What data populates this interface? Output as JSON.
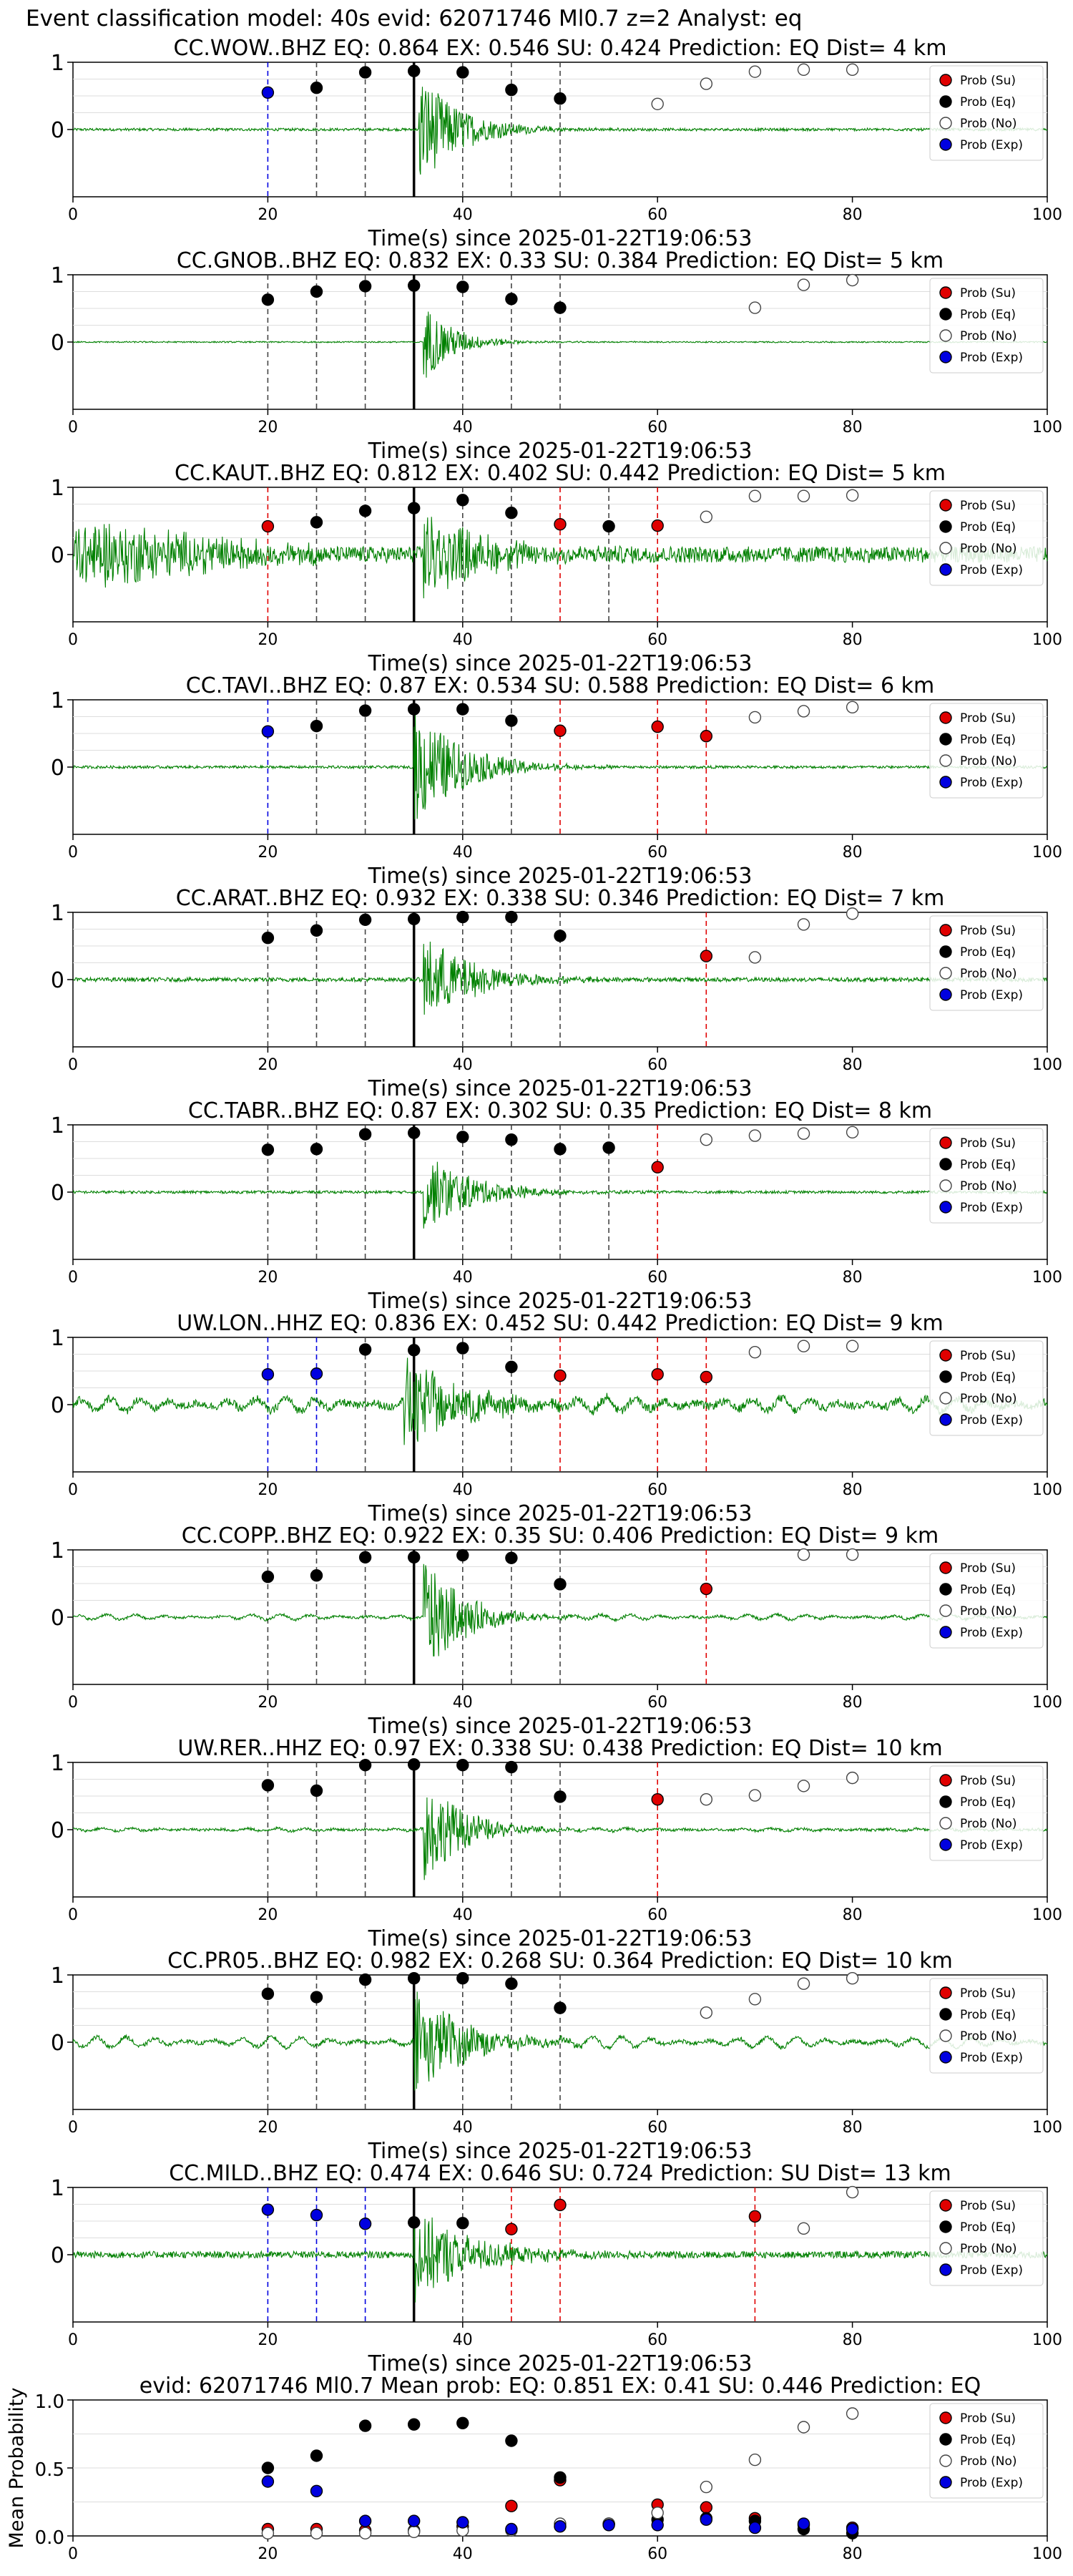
{
  "figure": {
    "suptitle": "Event classification model: 40s evid: 62071746 Ml0.7 z=2 Analyst: eq"
  },
  "legend_labels": [
    "Prob (Su)",
    "Prob (Eq)",
    "Prob (No)",
    "Prob (Exp)"
  ],
  "colors": {
    "su": "#e00000",
    "eq": "#000000",
    "no": "#ffffff",
    "exp": "#0000e0",
    "waveform": "#008000"
  },
  "chart_data": [
    {
      "type": "scatter",
      "kind": "station",
      "title": "CC.WOW..BHZ   EQ: 0.864  EX: 0.546  SU: 0.424   Prediction: EQ    Dist= 4 km",
      "xlabel": "Time(s) since 2025-01-22T19:06:53",
      "xlim": [
        0,
        100
      ],
      "ylim": [
        -1,
        1
      ],
      "xticks": [
        0,
        20,
        40,
        60,
        80,
        100
      ],
      "yticks": [
        0,
        1
      ],
      "waveform": {
        "noise": 0.02,
        "burst_start": 35.5,
        "burst_amp": 0.9,
        "decay": 4
      },
      "pick_time": 35,
      "points": [
        [
          20,
          0.55,
          "exp"
        ],
        [
          25,
          0.62,
          "eq"
        ],
        [
          30,
          0.85,
          "eq"
        ],
        [
          35,
          0.87,
          "eq"
        ],
        [
          40,
          0.85,
          "eq"
        ],
        [
          45,
          0.59,
          "eq"
        ],
        [
          50,
          0.46,
          "eq"
        ],
        [
          60,
          0.38,
          "no"
        ],
        [
          65,
          0.68,
          "no"
        ],
        [
          70,
          0.86,
          "no"
        ],
        [
          75,
          0.89,
          "no"
        ],
        [
          80,
          0.89,
          "no"
        ]
      ]
    },
    {
      "type": "scatter",
      "kind": "station",
      "title": "CC.GNOB..BHZ   EQ: 0.832  EX: 0.33  SU: 0.384   Prediction: EQ    Dist= 5 km",
      "xlabel": "Time(s) since 2025-01-22T19:06:53",
      "xlim": [
        0,
        100
      ],
      "ylim": [
        -1,
        1
      ],
      "xticks": [
        0,
        20,
        40,
        60,
        80,
        100
      ],
      "yticks": [
        0,
        1
      ],
      "waveform": {
        "noise": 0.01,
        "burst_start": 36,
        "burst_amp": 0.6,
        "decay": 3
      },
      "pick_time": 35,
      "points": [
        [
          20,
          0.63,
          "eq"
        ],
        [
          25,
          0.75,
          "eq"
        ],
        [
          30,
          0.83,
          "eq"
        ],
        [
          35,
          0.84,
          "eq"
        ],
        [
          40,
          0.82,
          "eq"
        ],
        [
          45,
          0.64,
          "eq"
        ],
        [
          50,
          0.51,
          "eq"
        ],
        [
          70,
          0.51,
          "no"
        ],
        [
          75,
          0.85,
          "no"
        ],
        [
          80,
          0.92,
          "no"
        ]
      ]
    },
    {
      "type": "scatter",
      "kind": "station",
      "title": "CC.KAUT..BHZ   EQ: 0.812  EX: 0.402  SU: 0.442   Prediction: EQ    Dist= 5 km",
      "xlabel": "Time(s) since 2025-01-22T19:06:53",
      "xlim": [
        0,
        100
      ],
      "ylim": [
        -1,
        1
      ],
      "xticks": [
        0,
        20,
        40,
        60,
        80,
        100
      ],
      "yticks": [
        0,
        1
      ],
      "waveform": {
        "noise": 0.12,
        "early_amp": 0.5,
        "burst_start": 36,
        "burst_amp": 0.7,
        "decay": 6
      },
      "pick_time": 35,
      "points": [
        [
          20,
          0.42,
          "su"
        ],
        [
          25,
          0.48,
          "eq"
        ],
        [
          30,
          0.65,
          "eq"
        ],
        [
          35,
          0.69,
          "eq"
        ],
        [
          40,
          0.81,
          "eq"
        ],
        [
          45,
          0.62,
          "eq"
        ],
        [
          50,
          0.45,
          "su"
        ],
        [
          55,
          0.42,
          "eq"
        ],
        [
          60,
          0.43,
          "su"
        ],
        [
          65,
          0.56,
          "no"
        ],
        [
          70,
          0.87,
          "no"
        ],
        [
          75,
          0.87,
          "no"
        ],
        [
          80,
          0.88,
          "no"
        ]
      ]
    },
    {
      "type": "scatter",
      "kind": "station",
      "title": "CC.TAVI..BHZ   EQ: 0.87  EX: 0.534  SU: 0.588   Prediction: EQ    Dist= 6 km",
      "xlabel": "Time(s) since 2025-01-22T19:06:53",
      "xlim": [
        0,
        100
      ],
      "ylim": [
        -1,
        1
      ],
      "xticks": [
        0,
        20,
        40,
        60,
        80,
        100
      ],
      "yticks": [
        0,
        1
      ],
      "waveform": {
        "noise": 0.02,
        "burst_start": 35,
        "burst_amp": 0.9,
        "decay": 5
      },
      "pick_time": 35,
      "points": [
        [
          20,
          0.53,
          "exp"
        ],
        [
          25,
          0.61,
          "eq"
        ],
        [
          30,
          0.84,
          "eq"
        ],
        [
          35,
          0.86,
          "eq"
        ],
        [
          40,
          0.86,
          "eq"
        ],
        [
          45,
          0.69,
          "eq"
        ],
        [
          50,
          0.54,
          "su"
        ],
        [
          60,
          0.6,
          "su"
        ],
        [
          65,
          0.46,
          "su"
        ],
        [
          70,
          0.74,
          "no"
        ],
        [
          75,
          0.83,
          "no"
        ],
        [
          80,
          0.89,
          "no"
        ]
      ]
    },
    {
      "type": "scatter",
      "kind": "station",
      "title": "CC.ARAT..BHZ   EQ: 0.932  EX: 0.338  SU: 0.346   Prediction: EQ    Dist= 7 km",
      "xlabel": "Time(s) since 2025-01-22T19:06:53",
      "xlim": [
        0,
        100
      ],
      "ylim": [
        -1,
        1
      ],
      "xticks": [
        0,
        20,
        40,
        60,
        80,
        100
      ],
      "yticks": [
        0,
        1
      ],
      "waveform": {
        "noise": 0.03,
        "burst_start": 36,
        "burst_amp": 0.7,
        "decay": 5
      },
      "pick_time": 35,
      "points": [
        [
          20,
          0.62,
          "eq"
        ],
        [
          25,
          0.73,
          "eq"
        ],
        [
          30,
          0.89,
          "eq"
        ],
        [
          35,
          0.9,
          "eq"
        ],
        [
          40,
          0.93,
          "eq"
        ],
        [
          45,
          0.93,
          "eq"
        ],
        [
          50,
          0.65,
          "eq"
        ],
        [
          65,
          0.35,
          "su"
        ],
        [
          70,
          0.33,
          "no"
        ],
        [
          75,
          0.82,
          "no"
        ],
        [
          80,
          0.98,
          "no"
        ]
      ]
    },
    {
      "type": "scatter",
      "kind": "station",
      "title": "CC.TABR..BHZ   EQ: 0.87  EX: 0.302  SU: 0.35   Prediction: EQ    Dist= 8 km",
      "xlabel": "Time(s) since 2025-01-22T19:06:53",
      "xlim": [
        0,
        100
      ],
      "ylim": [
        -1,
        1
      ],
      "xticks": [
        0,
        20,
        40,
        60,
        80,
        100
      ],
      "yticks": [
        0,
        1
      ],
      "waveform": {
        "noise": 0.02,
        "burst_start": 36,
        "burst_amp": 0.6,
        "decay": 5
      },
      "pick_time": 35,
      "points": [
        [
          20,
          0.63,
          "eq"
        ],
        [
          25,
          0.64,
          "eq"
        ],
        [
          30,
          0.86,
          "eq"
        ],
        [
          35,
          0.88,
          "eq"
        ],
        [
          40,
          0.82,
          "eq"
        ],
        [
          45,
          0.78,
          "eq"
        ],
        [
          50,
          0.64,
          "eq"
        ],
        [
          55,
          0.66,
          "eq"
        ],
        [
          60,
          0.37,
          "su"
        ],
        [
          65,
          0.78,
          "no"
        ],
        [
          70,
          0.84,
          "no"
        ],
        [
          75,
          0.87,
          "no"
        ],
        [
          80,
          0.89,
          "no"
        ]
      ]
    },
    {
      "type": "scatter",
      "kind": "station",
      "title": "UW.LON..HHZ   EQ: 0.836  EX: 0.452  SU: 0.442   Prediction: EQ    Dist= 9 km",
      "xlabel": "Time(s) since 2025-01-22T19:06:53",
      "xlim": [
        0,
        100
      ],
      "ylim": [
        -1,
        1
      ],
      "xticks": [
        0,
        20,
        40,
        60,
        80,
        100
      ],
      "yticks": [
        0,
        1
      ],
      "waveform": {
        "noise": 0.06,
        "swell": 0.1,
        "burst_start": 34,
        "burst_amp": 0.7,
        "decay": 6
      },
      "pick_time": 35,
      "points": [
        [
          20,
          0.45,
          "exp"
        ],
        [
          25,
          0.46,
          "exp"
        ],
        [
          30,
          0.82,
          "eq"
        ],
        [
          35,
          0.81,
          "eq"
        ],
        [
          40,
          0.84,
          "eq"
        ],
        [
          45,
          0.56,
          "eq"
        ],
        [
          50,
          0.43,
          "su"
        ],
        [
          60,
          0.45,
          "su"
        ],
        [
          65,
          0.41,
          "su"
        ],
        [
          70,
          0.78,
          "no"
        ],
        [
          75,
          0.87,
          "no"
        ],
        [
          80,
          0.87,
          "no"
        ]
      ]
    },
    {
      "type": "scatter",
      "kind": "station",
      "title": "CC.COPP..BHZ   EQ: 0.922  EX: 0.35  SU: 0.406   Prediction: EQ    Dist= 9 km",
      "xlabel": "Time(s) since 2025-01-22T19:06:53",
      "xlim": [
        0,
        100
      ],
      "ylim": [
        -1,
        1
      ],
      "xticks": [
        0,
        20,
        40,
        60,
        80,
        100
      ],
      "yticks": [
        0,
        1
      ],
      "waveform": {
        "noise": 0.02,
        "swell": 0.04,
        "burst_start": 36,
        "burst_amp": 0.9,
        "decay": 4
      },
      "pick_time": 35,
      "points": [
        [
          20,
          0.6,
          "eq"
        ],
        [
          25,
          0.62,
          "eq"
        ],
        [
          30,
          0.89,
          "eq"
        ],
        [
          35,
          0.89,
          "eq"
        ],
        [
          40,
          0.92,
          "eq"
        ],
        [
          45,
          0.88,
          "eq"
        ],
        [
          50,
          0.49,
          "eq"
        ],
        [
          65,
          0.42,
          "su"
        ],
        [
          75,
          0.93,
          "no"
        ],
        [
          80,
          0.93,
          "no"
        ]
      ]
    },
    {
      "type": "scatter",
      "kind": "station",
      "title": "UW.RER..HHZ   EQ: 0.97  EX: 0.338  SU: 0.438   Prediction: EQ    Dist= 10 km",
      "xlabel": "Time(s) since 2025-01-22T19:06:53",
      "xlim": [
        0,
        100
      ],
      "ylim": [
        -1,
        1
      ],
      "xticks": [
        0,
        20,
        40,
        60,
        80,
        100
      ],
      "yticks": [
        0,
        1
      ],
      "waveform": {
        "noise": 0.02,
        "swell": 0.02,
        "burst_start": 36,
        "burst_amp": 0.8,
        "decay": 4
      },
      "pick_time": 35,
      "points": [
        [
          20,
          0.66,
          "eq"
        ],
        [
          25,
          0.58,
          "eq"
        ],
        [
          30,
          0.96,
          "eq"
        ],
        [
          35,
          0.97,
          "eq"
        ],
        [
          40,
          0.96,
          "eq"
        ],
        [
          45,
          0.93,
          "eq"
        ],
        [
          50,
          0.49,
          "eq"
        ],
        [
          60,
          0.45,
          "su"
        ],
        [
          65,
          0.45,
          "no"
        ],
        [
          70,
          0.51,
          "no"
        ],
        [
          75,
          0.65,
          "no"
        ],
        [
          80,
          0.77,
          "no"
        ]
      ]
    },
    {
      "type": "scatter",
      "kind": "station",
      "title": "CC.PR05..BHZ   EQ: 0.982  EX: 0.268  SU: 0.364   Prediction: EQ    Dist= 10 km",
      "xlabel": "Time(s) since 2025-01-22T19:06:53",
      "xlim": [
        0,
        100
      ],
      "ylim": [
        -1,
        1
      ],
      "xticks": [
        0,
        20,
        40,
        60,
        80,
        100
      ],
      "yticks": [
        0,
        1
      ],
      "waveform": {
        "noise": 0.03,
        "swell": 0.08,
        "burst_start": 35,
        "burst_amp": 0.8,
        "decay": 5
      },
      "pick_time": 35,
      "points": [
        [
          20,
          0.72,
          "eq"
        ],
        [
          25,
          0.67,
          "eq"
        ],
        [
          30,
          0.93,
          "eq"
        ],
        [
          35,
          0.95,
          "eq"
        ],
        [
          40,
          0.95,
          "eq"
        ],
        [
          45,
          0.87,
          "eq"
        ],
        [
          50,
          0.51,
          "eq"
        ],
        [
          65,
          0.44,
          "no"
        ],
        [
          70,
          0.64,
          "no"
        ],
        [
          75,
          0.87,
          "no"
        ],
        [
          80,
          0.95,
          "no"
        ]
      ]
    },
    {
      "type": "scatter",
      "kind": "station",
      "title": "CC.MILD..BHZ   EQ: 0.474  EX: 0.646  SU: 0.724   Prediction: SU    Dist= 13 km",
      "xlabel": "Time(s) since 2025-01-22T19:06:53",
      "xlim": [
        0,
        100
      ],
      "ylim": [
        -1,
        1
      ],
      "xticks": [
        0,
        20,
        40,
        60,
        80,
        100
      ],
      "yticks": [
        0,
        1
      ],
      "waveform": {
        "noise": 0.05,
        "burst_start": 35,
        "burst_amp": 0.7,
        "decay": 6
      },
      "pick_time": 35,
      "points": [
        [
          20,
          0.67,
          "exp"
        ],
        [
          25,
          0.59,
          "exp"
        ],
        [
          30,
          0.46,
          "exp"
        ],
        [
          35,
          0.48,
          "eq"
        ],
        [
          40,
          0.47,
          "eq"
        ],
        [
          45,
          0.38,
          "su"
        ],
        [
          50,
          0.74,
          "su"
        ],
        [
          70,
          0.57,
          "su"
        ],
        [
          75,
          0.39,
          "no"
        ],
        [
          80,
          0.93,
          "no"
        ]
      ]
    },
    {
      "type": "scatter",
      "kind": "mean",
      "title": "evid: 62071746  Ml0.7   Mean prob:   EQ: 0.851  EX: 0.41  SU: 0.446   Prediction: EQ",
      "xlabel": "",
      "ylabel": "Mean Probability",
      "xlim": [
        0,
        100
      ],
      "ylim": [
        0,
        1
      ],
      "xticks": [
        0,
        20,
        40,
        60,
        80,
        100
      ],
      "yticks": [
        0.0,
        0.5,
        1.0
      ],
      "ytick_labels": [
        "0.0",
        "0.5",
        "1.0"
      ],
      "series": [
        {
          "key": "su",
          "x": [
            20,
            25,
            30,
            35,
            40,
            45,
            50,
            55,
            60,
            65,
            70,
            75,
            80
          ],
          "values": [
            0.05,
            0.05,
            0.04,
            0.04,
            0.07,
            0.22,
            0.41,
            0.09,
            0.23,
            0.21,
            0.13,
            0.08,
            0.06
          ]
        },
        {
          "key": "eq",
          "x": [
            20,
            25,
            30,
            35,
            40,
            45,
            50,
            55,
            60,
            65,
            70,
            75,
            80
          ],
          "values": [
            0.5,
            0.59,
            0.81,
            0.82,
            0.83,
            0.7,
            0.43,
            0.09,
            0.12,
            0.13,
            0.11,
            0.05,
            0.02
          ]
        },
        {
          "key": "no",
          "x": [
            20,
            25,
            30,
            35,
            40,
            45,
            50,
            55,
            60,
            65,
            70,
            75,
            80
          ],
          "values": [
            0.02,
            0.02,
            0.02,
            0.03,
            0.04,
            0.04,
            0.09,
            0.09,
            0.17,
            0.36,
            0.56,
            0.8,
            0.9
          ]
        },
        {
          "key": "exp",
          "x": [
            20,
            25,
            30,
            35,
            40,
            45,
            50,
            55,
            60,
            65,
            70,
            75,
            80
          ],
          "values": [
            0.4,
            0.33,
            0.11,
            0.11,
            0.1,
            0.05,
            0.07,
            0.08,
            0.08,
            0.12,
            0.06,
            0.09,
            0.05
          ]
        }
      ]
    }
  ]
}
